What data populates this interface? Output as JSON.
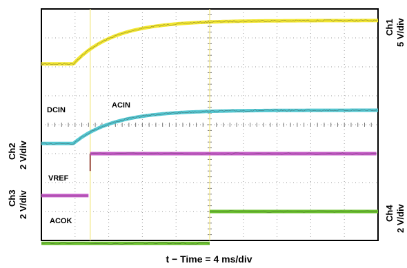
{
  "chart_data": {
    "type": "line",
    "title": "",
    "xlabel": "t − Time = 4 ms/div",
    "grid": true,
    "divisions": {
      "x": 10,
      "y": 8
    },
    "channels": [
      {
        "name": "Ch1",
        "scale": "5 V/div",
        "side": "right"
      },
      {
        "name": "Ch2",
        "scale": "2 V/div",
        "side": "left"
      },
      {
        "name": "Ch3",
        "scale": "2 V/div",
        "side": "left"
      },
      {
        "name": "Ch4",
        "scale": "2 V/div",
        "side": "right"
      }
    ],
    "series": [
      {
        "name": "DCIN",
        "color": "#f2e630",
        "start_div": 6.1,
        "rise_at_div": 0.95,
        "rise_to_div": 7.6,
        "tau_div": 1.2
      },
      {
        "name": "ACIN",
        "color": "#54c6d0",
        "start_div": 3.35,
        "rise_at_div": 0.95,
        "rise_to_div": 4.5,
        "tau_div": 1.2
      },
      {
        "name": "VREF",
        "color": "#c45ac6",
        "low_div": 1.55,
        "high_div": 3.0,
        "step_at_div": 1.45
      },
      {
        "name": "ACOK",
        "color": "#6abf2e",
        "low_div": -0.1,
        "high_div": 1.0,
        "step_at_div": 5.0
      }
    ],
    "markers_x_div": [
      1.45,
      5.0
    ]
  },
  "labels": {
    "ch1_name": "Ch1",
    "ch1_scale": "5 V/div",
    "ch2_name": "Ch2",
    "ch2_scale": "2 V/div",
    "ch3_name": "Ch3",
    "ch3_scale": "2 V/div",
    "ch4_name": "Ch4",
    "ch4_scale": "2 V/div",
    "dcin": "DCIN",
    "acin": "ACIN",
    "vref": "VREF",
    "acok": "ACOK",
    "time_axis": "t − Time = 4 ms/div"
  }
}
